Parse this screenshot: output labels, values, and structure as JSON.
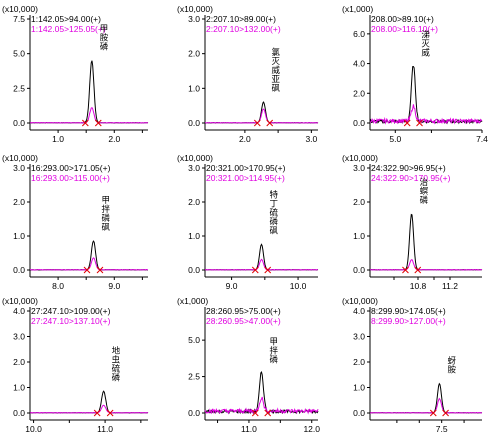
{
  "colors": {
    "black_trace": "#000000",
    "magenta_trace": "#e000e0",
    "peak_marker": "#e00000",
    "axis": "#000000"
  },
  "chart_data": [
    {
      "type": "line",
      "scale": "(x10,000)",
      "yticks": [
        "0.0",
        "2.5",
        "5.0",
        "7.5"
      ],
      "ylim": [
        0,
        7.5
      ],
      "xlim": [
        0.5,
        2.6
      ],
      "xticks": [
        {
          "v": 1.0,
          "label": "1.0"
        },
        {
          "v": 1.5,
          "label": ""
        },
        {
          "v": 2.0,
          "label": "2.0"
        },
        {
          "v": 2.5,
          "label": ""
        }
      ],
      "series": [
        {
          "name": "1:142.05>94.00(+)",
          "color": "#000000"
        },
        {
          "name": "1:142.05>125.05(+)",
          "color": "#e000e0"
        }
      ],
      "compound": "甲胺磷",
      "peak_x": 1.6,
      "peak_heights": [
        4.5,
        1.1
      ],
      "baseline_noise": false
    },
    {
      "type": "line",
      "scale": "(x10,000)",
      "yticks": [
        "0.0",
        "1.0",
        "2.0",
        "3.0"
      ],
      "ylim": [
        0,
        3.0
      ],
      "xlim": [
        1.4,
        3.1
      ],
      "xticks": [
        {
          "v": 2.0,
          "label": "2.0"
        },
        {
          "v": 2.5,
          "label": ""
        },
        {
          "v": 3.0,
          "label": "3.0"
        }
      ],
      "series": [
        {
          "name": "2:207.10>89.00(+)",
          "color": "#000000"
        },
        {
          "name": "2:207.10>132.00(+)",
          "color": "#e000e0"
        }
      ],
      "compound": "氯灭威亚砜",
      "peak_x": 2.28,
      "peak_heights": [
        0.6,
        0.4
      ],
      "baseline_noise": false
    },
    {
      "type": "line",
      "scale": "(x1,000)",
      "yticks": [
        "0.0",
        "2.0",
        "4.0",
        "6.0"
      ],
      "ylim": [
        0,
        7.0
      ],
      "xlim": [
        4.3,
        7.4
      ],
      "xticks": [
        {
          "v": 5.0,
          "label": "5.0"
        },
        {
          "v": 6.0,
          "label": ""
        },
        {
          "v": 7.4,
          "label": "7.4"
        }
      ],
      "series": [
        {
          "name": "208.00>89.10(+)",
          "color": "#000000"
        },
        {
          "name": "208.00>116.10(+)",
          "color": "#e000e0"
        }
      ],
      "compound": "涕灭威",
      "peak_x": 5.5,
      "peak_heights": [
        3.8,
        1.0
      ],
      "baseline_noise": true
    },
    {
      "type": "line",
      "scale": "(x10,000)",
      "yticks": [
        "0.0",
        "1.0",
        "2.0",
        "3.0"
      ],
      "ylim": [
        0,
        3.0
      ],
      "xlim": [
        7.5,
        9.6
      ],
      "xticks": [
        {
          "v": 8.0,
          "label": "8.0"
        },
        {
          "v": 8.5,
          "label": ""
        },
        {
          "v": 9.0,
          "label": "9.0"
        },
        {
          "v": 9.5,
          "label": ""
        }
      ],
      "series": [
        {
          "name": "16:293.00>171.05(+)",
          "color": "#000000"
        },
        {
          "name": "16:293.00>115.00(+)",
          "color": "#e000e0"
        }
      ],
      "compound": "甲拌磷砜",
      "peak_x": 8.63,
      "peak_heights": [
        0.85,
        0.35
      ],
      "baseline_noise": false
    },
    {
      "type": "line",
      "scale": "(x10,000)",
      "yticks": [
        "0.0",
        "1.0",
        "2.0",
        "3.0"
      ],
      "ylim": [
        0,
        3.0
      ],
      "xlim": [
        8.6,
        10.3
      ],
      "xticks": [
        {
          "v": 9.0,
          "label": "9.0"
        },
        {
          "v": 9.5,
          "label": ""
        },
        {
          "v": 10.0,
          "label": "10.0"
        }
      ],
      "series": [
        {
          "name": "20:321.00>170.95(+)",
          "color": "#000000"
        },
        {
          "name": "20:321.00>114.95(+)",
          "color": "#e000e0"
        }
      ],
      "compound": "特丁硫磷砜",
      "peak_x": 9.45,
      "peak_heights": [
        0.75,
        0.3
      ],
      "baseline_noise": false
    },
    {
      "type": "line",
      "scale": "(x10,000)",
      "yticks": [
        "0.0",
        "1.0",
        "2.0",
        "3.0"
      ],
      "ylim": [
        0,
        3.0
      ],
      "xlim": [
        10.2,
        11.6
      ],
      "xticks": [
        {
          "v": 10.5,
          "label": ""
        },
        {
          "v": 10.8,
          "label": "10.8"
        },
        {
          "v": 11.0,
          "label": ""
        },
        {
          "v": 11.2,
          "label": "11.2"
        }
      ],
      "series": [
        {
          "name": "24:322.90>96.95(+)",
          "color": "#000000"
        },
        {
          "name": "24:322.90>170.95(+)",
          "color": "#e000e0"
        }
      ],
      "compound": "治螟磷",
      "peak_x": 10.72,
      "peak_heights": [
        1.65,
        0.3
      ],
      "baseline_noise": false
    },
    {
      "type": "line",
      "scale": "(x10,000)",
      "yticks": [
        "0.0",
        "1.0",
        "2.0",
        "3.0",
        "4.0"
      ],
      "ylim": [
        0,
        4.0
      ],
      "xlim": [
        9.95,
        11.6
      ],
      "xticks": [
        {
          "v": 10.0,
          "label": "10.0"
        },
        {
          "v": 10.5,
          "label": ""
        },
        {
          "v": 11.0,
          "label": "11.0"
        },
        {
          "v": 11.5,
          "label": ""
        }
      ],
      "series": [
        {
          "name": "27:247.10>109.00(+)",
          "color": "#000000"
        },
        {
          "name": "27:247.10>137.10(+)",
          "color": "#e000e0"
        }
      ],
      "compound": "地虫硫磷",
      "peak_x": 10.98,
      "peak_heights": [
        0.85,
        0.3
      ],
      "baseline_noise": false
    },
    {
      "type": "line",
      "scale": "(x1,000)",
      "yticks": [
        "0.0",
        "2.5",
        "5.0"
      ],
      "ylim": [
        0,
        7.0
      ],
      "xlim": [
        10.3,
        12.1
      ],
      "xticks": [
        {
          "v": 10.5,
          "label": ""
        },
        {
          "v": 11.0,
          "label": "11.0"
        },
        {
          "v": 11.5,
          "label": ""
        },
        {
          "v": 12.0,
          "label": "12.0"
        }
      ],
      "series": [
        {
          "name": "28:260.95>75.00(+)",
          "color": "#000000"
        },
        {
          "name": "28:260.95>47.00(+)",
          "color": "#e000e0"
        }
      ],
      "compound": "甲拌磷",
      "peak_x": 11.2,
      "peak_heights": [
        2.7,
        0.9
      ],
      "baseline_noise": true
    },
    {
      "type": "line",
      "scale": "(x10,000)",
      "yticks": [
        "0.0",
        "1.0",
        "2.0",
        "3.0",
        "4.0"
      ],
      "ylim": [
        0,
        4.0
      ],
      "xlim": [
        5.9,
        8.4
      ],
      "xticks": [
        {
          "v": 6.5,
          "label": ""
        },
        {
          "v": 7.0,
          "label": ""
        },
        {
          "v": 7.5,
          "label": "7.5"
        },
        {
          "v": 8.0,
          "label": ""
        }
      ],
      "series": [
        {
          "name": "8:299.90>174.05(+)",
          "color": "#000000"
        },
        {
          "name": "8:299.90>127.00(+)",
          "color": "#e000e0"
        }
      ],
      "compound": "蚜胺",
      "peak_x": 7.45,
      "peak_heights": [
        1.15,
        0.55
      ],
      "baseline_noise": false
    }
  ]
}
